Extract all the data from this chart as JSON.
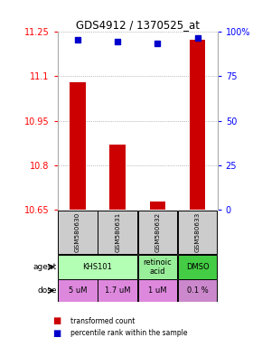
{
  "title": "GDS4912 / 1370525_at",
  "samples": [
    "GSM580630",
    "GSM580631",
    "GSM580632",
    "GSM580633"
  ],
  "bar_values": [
    11.08,
    10.87,
    10.68,
    11.22
  ],
  "dot_values": [
    95,
    94,
    93,
    96
  ],
  "ylim_left": [
    10.65,
    11.25
  ],
  "ylim_right": [
    0,
    100
  ],
  "yticks_left": [
    10.65,
    10.8,
    10.95,
    11.1,
    11.25
  ],
  "yticks_right": [
    0,
    25,
    50,
    75,
    100
  ],
  "ytick_labels_left": [
    "10.65",
    "10.8",
    "10.95",
    "11.1",
    "11.25"
  ],
  "ytick_labels_right": [
    "0",
    "25",
    "50",
    "75",
    "100%"
  ],
  "bar_color": "#cc0000",
  "dot_color": "#0000cc",
  "bar_bottom": 10.65,
  "agent_groups": [
    {
      "idxs": [
        0,
        1
      ],
      "label": "KHS101",
      "color": "#b3ffb3"
    },
    {
      "idxs": [
        2
      ],
      "label": "retinoic\nacid",
      "color": "#99ee99"
    },
    {
      "idxs": [
        3
      ],
      "label": "DMSO",
      "color": "#44cc44"
    }
  ],
  "dose_labels": [
    "5 uM",
    "1.7 uM",
    "1 uM",
    "0.1 %"
  ],
  "dose_colors": [
    "#dd88dd",
    "#dd88dd",
    "#dd88dd",
    "#cc88cc"
  ],
  "grid_color": "#888888",
  "sample_bg_color": "#cccccc",
  "legend_bar_color": "#cc0000",
  "legend_dot_color": "#0000cc",
  "legend_text1": "transformed count",
  "legend_text2": "percentile rank within the sample"
}
